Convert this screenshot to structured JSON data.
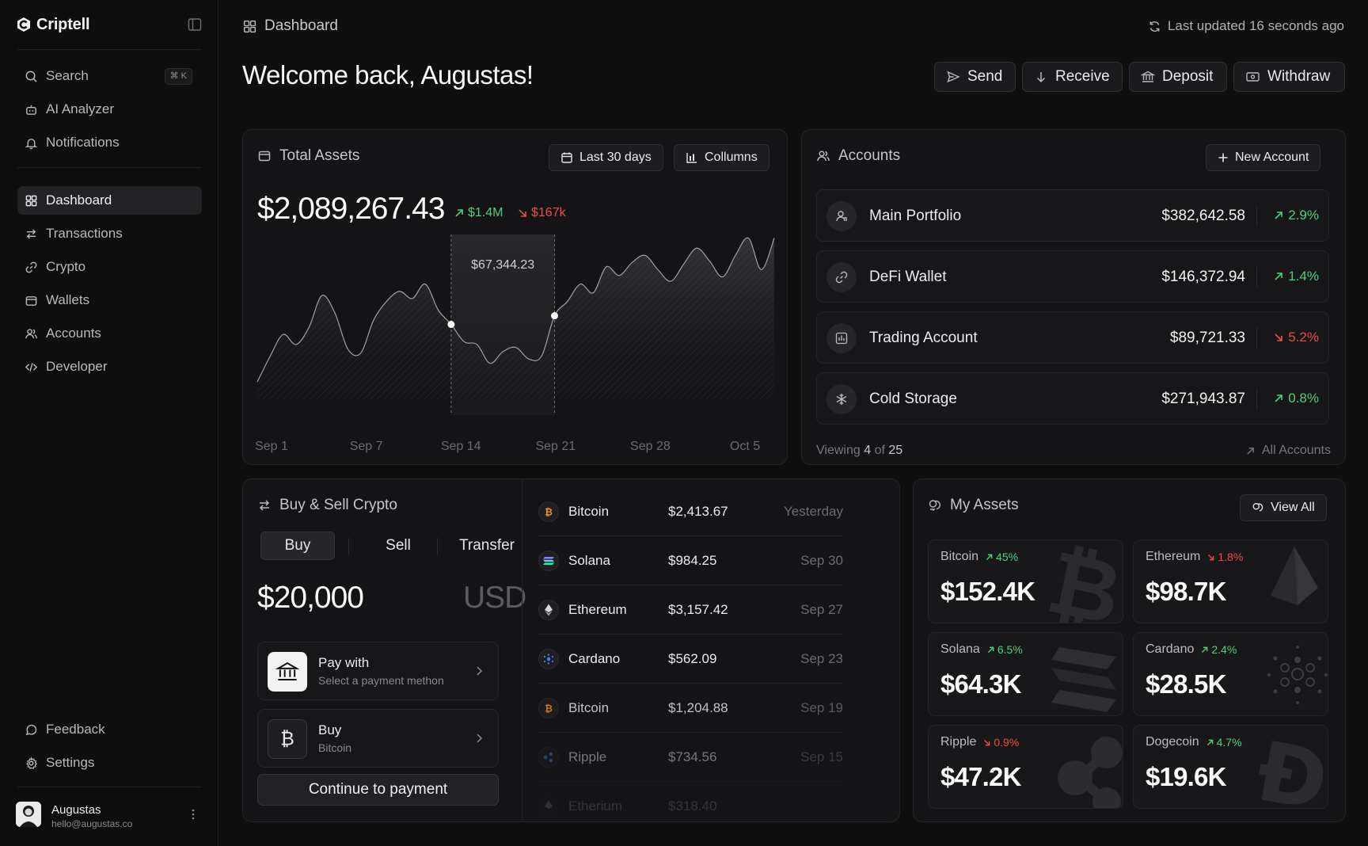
{
  "app": {
    "name": "Criptell"
  },
  "sidebar": {
    "search": {
      "label": "Search",
      "shortcut": "⌘ K"
    },
    "top_items": [
      {
        "label": "AI Analyzer",
        "icon": "robot-icon"
      },
      {
        "label": "Notifications",
        "icon": "bell-icon"
      }
    ],
    "items": [
      {
        "label": "Dashboard",
        "icon": "grid-icon",
        "active": true
      },
      {
        "label": "Transactions",
        "icon": "swap-icon"
      },
      {
        "label": "Crypto",
        "icon": "link-icon"
      },
      {
        "label": "Wallets",
        "icon": "wallet-icon"
      },
      {
        "label": "Accounts",
        "icon": "users-icon"
      },
      {
        "label": "Developer",
        "icon": "code-icon"
      }
    ],
    "bottom_items": [
      {
        "label": "Feedback",
        "icon": "chat-icon"
      },
      {
        "label": "Settings",
        "icon": "gear-icon"
      }
    ],
    "user": {
      "name": "Augustas",
      "email": "hello@augustas.co"
    }
  },
  "header": {
    "breadcrumb": "Dashboard",
    "last_updated": "Last updated 16 seconds ago",
    "welcome": "Welcome back, Augustas!",
    "actions": {
      "send": "Send",
      "receive": "Receive",
      "deposit": "Deposit",
      "withdraw": "Withdraw"
    }
  },
  "total_assets": {
    "title": "Total Assets",
    "range_label": "Last 30 days",
    "columns_label": "Collumns",
    "value": "$2,089,267.43",
    "gain": "$1.4M",
    "loss": "$167k",
    "tooltip": "$67,344.23",
    "chart_data": {
      "type": "area",
      "x_tick_labels": [
        "Sep 1",
        "Sep 7",
        "Sep 14",
        "Sep 21",
        "Sep 28",
        "Oct 5"
      ],
      "values": [
        12,
        30,
        45,
        38,
        50,
        72,
        60,
        35,
        32,
        55,
        68,
        75,
        70,
        80,
        62,
        52,
        40,
        38,
        25,
        33,
        36,
        28,
        30,
        58,
        68,
        80,
        74,
        92,
        86,
        95,
        100,
        90,
        82,
        94,
        105,
        96,
        85,
        100,
        112,
        90,
        112
      ],
      "y_range": [
        0,
        120
      ],
      "highlight_range": {
        "from_index": 15,
        "to_index": 23
      }
    }
  },
  "accounts": {
    "title": "Accounts",
    "new_label": "New Account",
    "rows": [
      {
        "name": "Main Portfolio",
        "balance": "$382,642.58",
        "change": "2.9%",
        "direction": "up",
        "icon": "user-icon"
      },
      {
        "name": "DeFi Wallet",
        "balance": "$146,372.94",
        "change": "1.4%",
        "direction": "up",
        "icon": "link-icon"
      },
      {
        "name": "Trading Account",
        "balance": "$89,721.33",
        "change": "5.2%",
        "direction": "down",
        "icon": "chart-icon"
      },
      {
        "name": "Cold Storage",
        "balance": "$271,943.87",
        "change": "0.8%",
        "direction": "up",
        "icon": "snowflake-icon"
      }
    ],
    "viewing_prefix": "Viewing",
    "viewing_count": "4",
    "viewing_of": "of",
    "viewing_total": "25",
    "all_label": "All Accounts"
  },
  "buy_sell": {
    "title": "Buy & Sell Crypto",
    "tabs": [
      "Buy",
      "Sell",
      "Transfer"
    ],
    "amount": "$20,000",
    "currency": "USD",
    "pay": {
      "title": "Pay with",
      "subtitle": "Select a payment methon"
    },
    "buy": {
      "title": "Buy",
      "subtitle": "Bitcoin"
    },
    "continue_label": "Continue to payment"
  },
  "transactions": [
    {
      "coin": "Bitcoin",
      "amount": "$2,413.67",
      "date": "Yesterday"
    },
    {
      "coin": "Solana",
      "amount": "$984.25",
      "date": "Sep 30"
    },
    {
      "coin": "Ethereum",
      "amount": "$3,157.42",
      "date": "Sep 27"
    },
    {
      "coin": "Cardano",
      "amount": "$562.09",
      "date": "Sep 23"
    },
    {
      "coin": "Bitcoin",
      "amount": "$1,204.88",
      "date": "Sep 19"
    },
    {
      "coin": "Ripple",
      "amount": "$734.56",
      "date": "Sep 15"
    },
    {
      "coin": "Etherium",
      "amount": "$318.40",
      "date": ""
    }
  ],
  "my_assets": {
    "title": "My Assets",
    "view_all_label": "View All",
    "tiles": [
      {
        "name": "Bitcoin",
        "change": "45%",
        "direction": "up",
        "value": "$152.4K"
      },
      {
        "name": "Ethereum",
        "change": "1.8%",
        "direction": "down",
        "value": "$98.7K"
      },
      {
        "name": "Solana",
        "change": "6.5%",
        "direction": "up",
        "value": "$64.3K"
      },
      {
        "name": "Cardano",
        "change": "2.4%",
        "direction": "up",
        "value": "$28.5K"
      },
      {
        "name": "Ripple",
        "change": "0.9%",
        "direction": "down",
        "value": "$47.2K"
      },
      {
        "name": "Dogecoin",
        "change": "4.7%",
        "direction": "up",
        "value": "$19.6K"
      }
    ]
  },
  "colors": {
    "up": "#4ecf7c",
    "down": "#ef4a4a",
    "bitcoin": "#f7931a"
  }
}
